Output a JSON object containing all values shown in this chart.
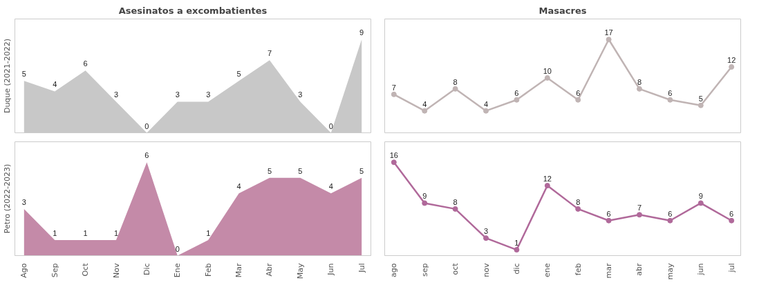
{
  "chart_data": [
    {
      "type": "area",
      "title": "Asesinatos a excombatientes",
      "ylabel": "Duque (2021-2022)",
      "categories": [
        null,
        null,
        null,
        null,
        null,
        null,
        null,
        null,
        null,
        null,
        null,
        null
      ],
      "values": [
        5,
        4,
        6,
        3,
        0,
        3,
        3,
        5,
        7,
        3,
        0,
        9
      ],
      "color": "#c8c8c8",
      "data_labels": true,
      "tick_labels": false,
      "grid": false
    },
    {
      "type": "line",
      "title": "Masacres",
      "categories": [
        null,
        null,
        null,
        null,
        null,
        null,
        null,
        null,
        null,
        null,
        null,
        null
      ],
      "values": [
        7,
        4,
        8,
        4,
        6,
        10,
        6,
        17,
        8,
        6,
        5,
        12
      ],
      "color": "#c0b4b4",
      "marker": "circle",
      "data_labels": true,
      "tick_labels": false,
      "grid": false
    },
    {
      "type": "area",
      "ylabel": "Petro (2022-2023)",
      "categories": [
        "Ago",
        "Sep",
        "Oct",
        "Nov",
        "Dic",
        "Ene",
        "Feb",
        "Mar",
        "Abr",
        "May",
        "Jun",
        "Jul"
      ],
      "values": [
        3,
        1,
        1,
        1,
        6,
        0,
        1,
        4,
        5,
        5,
        4,
        5
      ],
      "color": "#c48aa8",
      "data_labels": true,
      "tick_labels": "x",
      "grid": false
    },
    {
      "type": "line",
      "categories": [
        "ago",
        "sep",
        "oct",
        "nov",
        "dic",
        "ene",
        "feb",
        "mar",
        "abr",
        "may",
        "jun",
        "jul"
      ],
      "values": [
        16,
        9,
        8,
        3,
        1,
        12,
        8,
        6,
        7,
        6,
        9,
        6
      ],
      "color": "#b0699a",
      "marker": "circle",
      "data_labels": true,
      "tick_labels": "x",
      "grid": false
    }
  ]
}
